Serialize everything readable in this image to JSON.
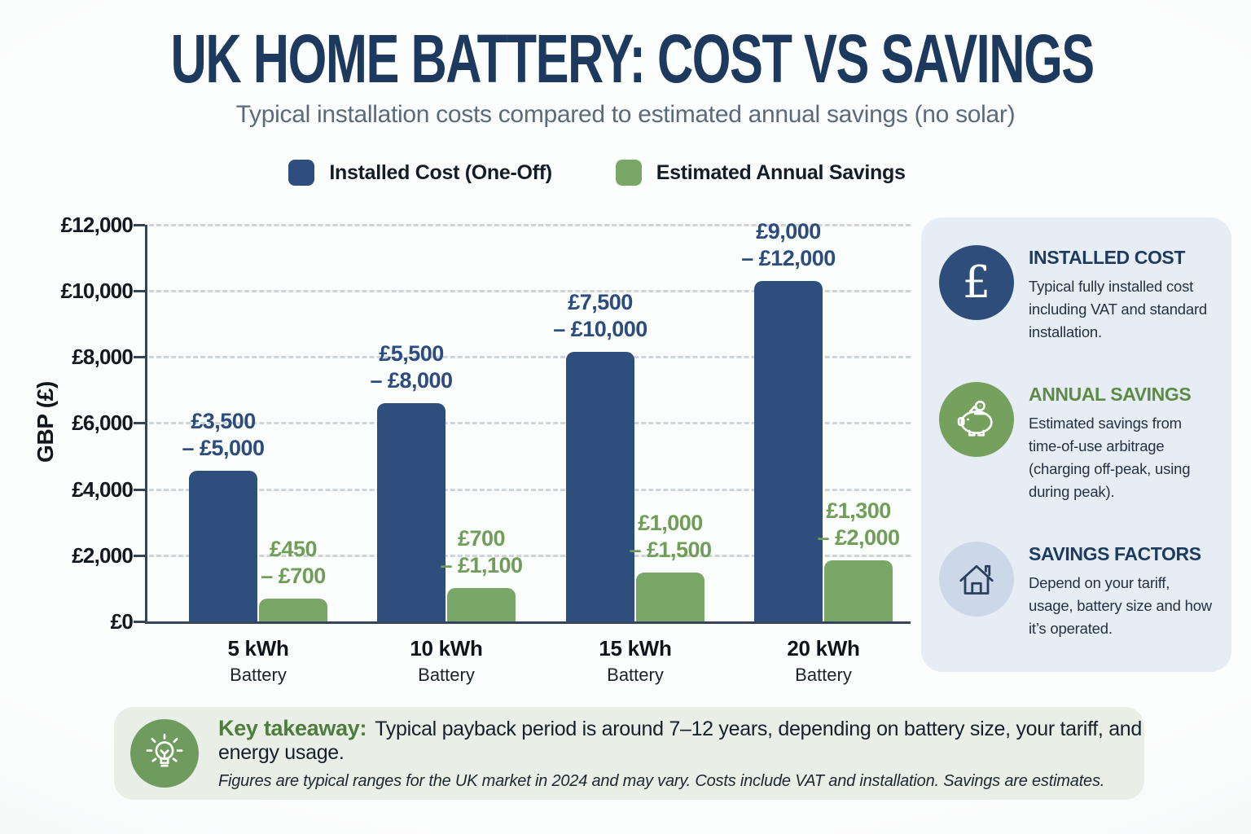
{
  "page": {
    "title": "UK HOME BATTERY: COST VS SAVINGS",
    "subtitle": "Typical installation costs compared to estimated annual savings (no solar)"
  },
  "chart_data": {
    "type": "bar",
    "title": "UK Home Battery: Cost vs Savings",
    "y_axis_label": "GBP (£)",
    "ylim": [
      0,
      12000
    ],
    "y_tick_step": 2000,
    "y_tick_labels": [
      "£0",
      "£2,000",
      "£4,000",
      "£6,000",
      "£8,000",
      "£10,000",
      "£12,000"
    ],
    "grid": "horizontal dashed",
    "legend_position": "top",
    "categories": [
      {
        "label": "5 kWh",
        "sublabel": "Battery"
      },
      {
        "label": "10 kWh",
        "sublabel": "Battery"
      },
      {
        "label": "15 kWh",
        "sublabel": "Battery"
      },
      {
        "label": "20 kWh",
        "sublabel": "Battery"
      }
    ],
    "series": [
      {
        "name": "Installed Cost (One-Off)",
        "color": "#2e4e7e",
        "values": [
          4550,
          6600,
          8150,
          10300
        ],
        "range_labels": [
          [
            "£3,500",
            "– £5,000"
          ],
          [
            "£5,500",
            "– £8,000"
          ],
          [
            "£7,500",
            "– £10,000"
          ],
          [
            "£9,000",
            "– £12,000"
          ]
        ]
      },
      {
        "name": "Estimated Annual Savings",
        "color": "#7aa667",
        "values": [
          680,
          1000,
          1480,
          1850
        ],
        "range_labels": [
          [
            "£450",
            "– £700"
          ],
          [
            "£700",
            "– £1,100"
          ],
          [
            "£1,000",
            "– £1,500"
          ],
          [
            "£1,300",
            "– £2,000"
          ]
        ]
      }
    ]
  },
  "sidebar": {
    "items": [
      {
        "icon": "pound-icon",
        "icon_glyph": "£",
        "heading": "INSTALLED COST",
        "heading_color": "#1e3a5e",
        "body": "Typical fully installed cost including VAT and standard installation."
      },
      {
        "icon": "piggy-bank-icon",
        "heading": "ANNUAL SAVINGS",
        "heading_color": "#5d8b45",
        "body": "Estimated savings from time-of-use arbitrage (charging off-peak, using during peak)."
      },
      {
        "icon": "house-icon",
        "heading": "SAVINGS FACTORS",
        "heading_color": "#1e3a5e",
        "body": "Depend on your tariff, usage, battery size and how it’s operated."
      }
    ]
  },
  "takeaway": {
    "icon": "lightbulb-icon",
    "label": "Key takeaway:",
    "text": "Typical payback period is around 7–12 years, depending on battery size, your tariff, and energy usage.",
    "note": "Figures are typical ranges for the UK market in 2024 and may vary. Costs include VAT and installation. Savings are estimates."
  },
  "colors": {
    "title_navy": "#1d3a5e",
    "subtitle_gray": "#5a6a7d",
    "cost_bar": "#2e4e7e",
    "savings_bar": "#7aa667",
    "cost_label": "#2b4c7d",
    "savings_label": "#6f9e58",
    "sidebar_bg": "#e7edf4",
    "takeaway_bg": "#e9eee7",
    "navy_circle": "#2e4d7b",
    "green_circle": "#76a05e",
    "light_blue_circle": "#ccd8e8",
    "axis": "#36445a"
  }
}
